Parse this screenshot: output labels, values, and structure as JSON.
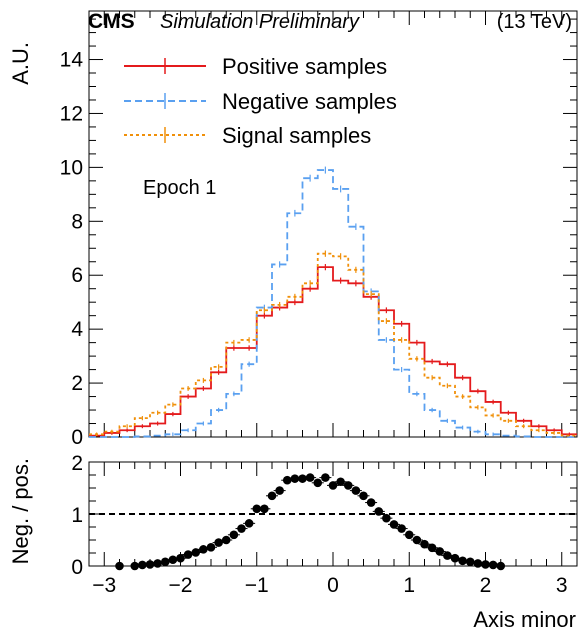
{
  "header": {
    "experiment": "CMS",
    "status": "Simulation Preliminary",
    "energy": "(13 TeV)"
  },
  "annotation": "Epoch 1",
  "chart_data": [
    {
      "type": "line",
      "ylabel": "A.U.",
      "xlim": [
        -3.2,
        3.2
      ],
      "ylim": [
        0,
        15.8
      ],
      "yticks": [
        0,
        2,
        4,
        6,
        8,
        10,
        12,
        14
      ],
      "legend": {
        "placement": "top-left"
      },
      "x_bins": [
        -3.2,
        -3.0,
        -2.8,
        -2.6,
        -2.4,
        -2.2,
        -2.0,
        -1.8,
        -1.6,
        -1.4,
        -1.2,
        -1.0,
        -0.8,
        -0.6,
        -0.4,
        -0.2,
        0.0,
        0.2,
        0.4,
        0.6,
        0.8,
        1.0,
        1.2,
        1.4,
        1.6,
        1.8,
        2.0,
        2.2,
        2.4,
        2.6,
        2.8,
        3.0,
        3.2
      ],
      "series": [
        {
          "name": "Positive samples",
          "color": "#e41a1c",
          "style": "solid",
          "values": [
            0.05,
            0.15,
            0.25,
            0.4,
            0.5,
            0.85,
            1.5,
            1.8,
            2.4,
            3.3,
            3.3,
            4.5,
            4.8,
            5.0,
            5.5,
            6.3,
            5.8,
            5.7,
            5.2,
            4.7,
            4.2,
            3.5,
            2.8,
            2.7,
            2.2,
            1.7,
            1.3,
            0.9,
            0.6,
            0.4,
            0.25,
            0.1
          ]
        },
        {
          "name": "Negative samples",
          "color": "#5aa0f0",
          "style": "dashed",
          "values": [
            0.0,
            0.0,
            0.0,
            0.02,
            0.05,
            0.1,
            0.25,
            0.5,
            1.0,
            1.6,
            2.7,
            4.8,
            6.4,
            8.3,
            9.6,
            9.9,
            9.2,
            7.8,
            5.4,
            3.6,
            2.5,
            1.6,
            1.0,
            0.6,
            0.35,
            0.2,
            0.1,
            0.05,
            0.02,
            0.0,
            0.0,
            0.0
          ]
        },
        {
          "name": "Signal samples",
          "color": "#f0900a",
          "style": "dotted",
          "values": [
            0.1,
            0.2,
            0.4,
            0.7,
            0.9,
            1.2,
            1.8,
            2.1,
            2.6,
            3.5,
            3.6,
            4.7,
            4.9,
            5.2,
            5.7,
            6.8,
            6.7,
            6.2,
            5.3,
            4.3,
            3.6,
            2.9,
            2.2,
            1.9,
            1.5,
            1.1,
            0.8,
            0.6,
            0.4,
            0.25,
            0.15,
            0.05
          ]
        }
      ]
    },
    {
      "type": "scatter",
      "ylabel": "Neg. / pos.",
      "xlabel": "Axis minor",
      "xlim": [
        -3.2,
        3.2
      ],
      "ylim": [
        0,
        2
      ],
      "yticks": [
        0,
        1,
        2
      ],
      "xticks": [
        -3,
        -2,
        -1,
        0,
        1,
        2,
        3
      ],
      "reference_line": 1,
      "x": [
        -2.8,
        -2.6,
        -2.5,
        -2.4,
        -2.3,
        -2.2,
        -2.1,
        -2.0,
        -1.9,
        -1.8,
        -1.7,
        -1.6,
        -1.5,
        -1.4,
        -1.3,
        -1.2,
        -1.1,
        -1.0,
        -0.9,
        -0.8,
        -0.7,
        -0.6,
        -0.5,
        -0.4,
        -0.3,
        -0.2,
        -0.1,
        0.0,
        0.1,
        0.2,
        0.3,
        0.4,
        0.5,
        0.6,
        0.7,
        0.8,
        0.9,
        1.0,
        1.1,
        1.2,
        1.3,
        1.4,
        1.5,
        1.6,
        1.7,
        1.8,
        1.9,
        2.0,
        2.1,
        2.2
      ],
      "y": [
        0.0,
        0.0,
        0.02,
        0.03,
        0.05,
        0.08,
        0.12,
        0.15,
        0.22,
        0.26,
        0.32,
        0.36,
        0.45,
        0.5,
        0.6,
        0.72,
        0.82,
        1.1,
        1.1,
        1.35,
        1.45,
        1.65,
        1.68,
        1.68,
        1.7,
        1.6,
        1.7,
        1.55,
        1.62,
        1.55,
        1.45,
        1.35,
        1.22,
        1.05,
        0.92,
        0.8,
        0.72,
        0.6,
        0.5,
        0.42,
        0.35,
        0.28,
        0.2,
        0.15,
        0.1,
        0.08,
        0.05,
        0.03,
        0.02,
        0.0
      ]
    }
  ]
}
